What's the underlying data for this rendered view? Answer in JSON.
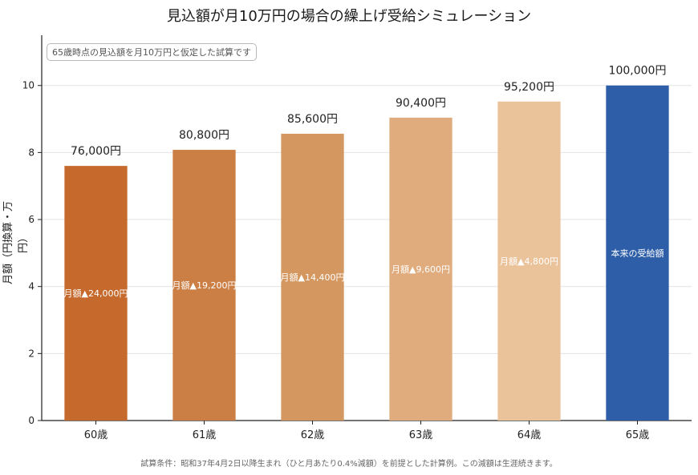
{
  "chart_data": {
    "type": "bar",
    "title": "見込額が月10万円の場合の繰上げ受給シミュレーション",
    "ylabel": "月額（円換算・万円）",
    "xlabel": "",
    "ylim": [
      0,
      11.5
    ],
    "yticks": [
      0,
      2,
      4,
      6,
      8,
      10
    ],
    "grid": "horizontal",
    "categories": [
      "60歳",
      "61歳",
      "62歳",
      "63歳",
      "64歳",
      "65歳"
    ],
    "values": [
      7.6,
      8.08,
      8.56,
      9.04,
      9.52,
      10.0
    ],
    "value_labels": [
      "76,000円",
      "80,800円",
      "85,600円",
      "90,400円",
      "95,200円",
      "100,000円"
    ],
    "inner_labels": [
      "月額▲24,000円",
      "月額▲19,200円",
      "月額▲14,400円",
      "月額▲9,600円",
      "月額▲4,800円",
      "本来の受給額"
    ],
    "colors": [
      "#C56A2C",
      "#CC7F45",
      "#D49760",
      "#E0AC7E",
      "#EBC39B",
      "#2E5EA8"
    ]
  },
  "note": "65歳時点の見込額を月10万円と仮定した試算です",
  "footer": "試算条件：昭和37年4月2日以降生まれ（ひと月あたり0.4%減額）を前提とした計算例。この減額は生涯続きます。"
}
